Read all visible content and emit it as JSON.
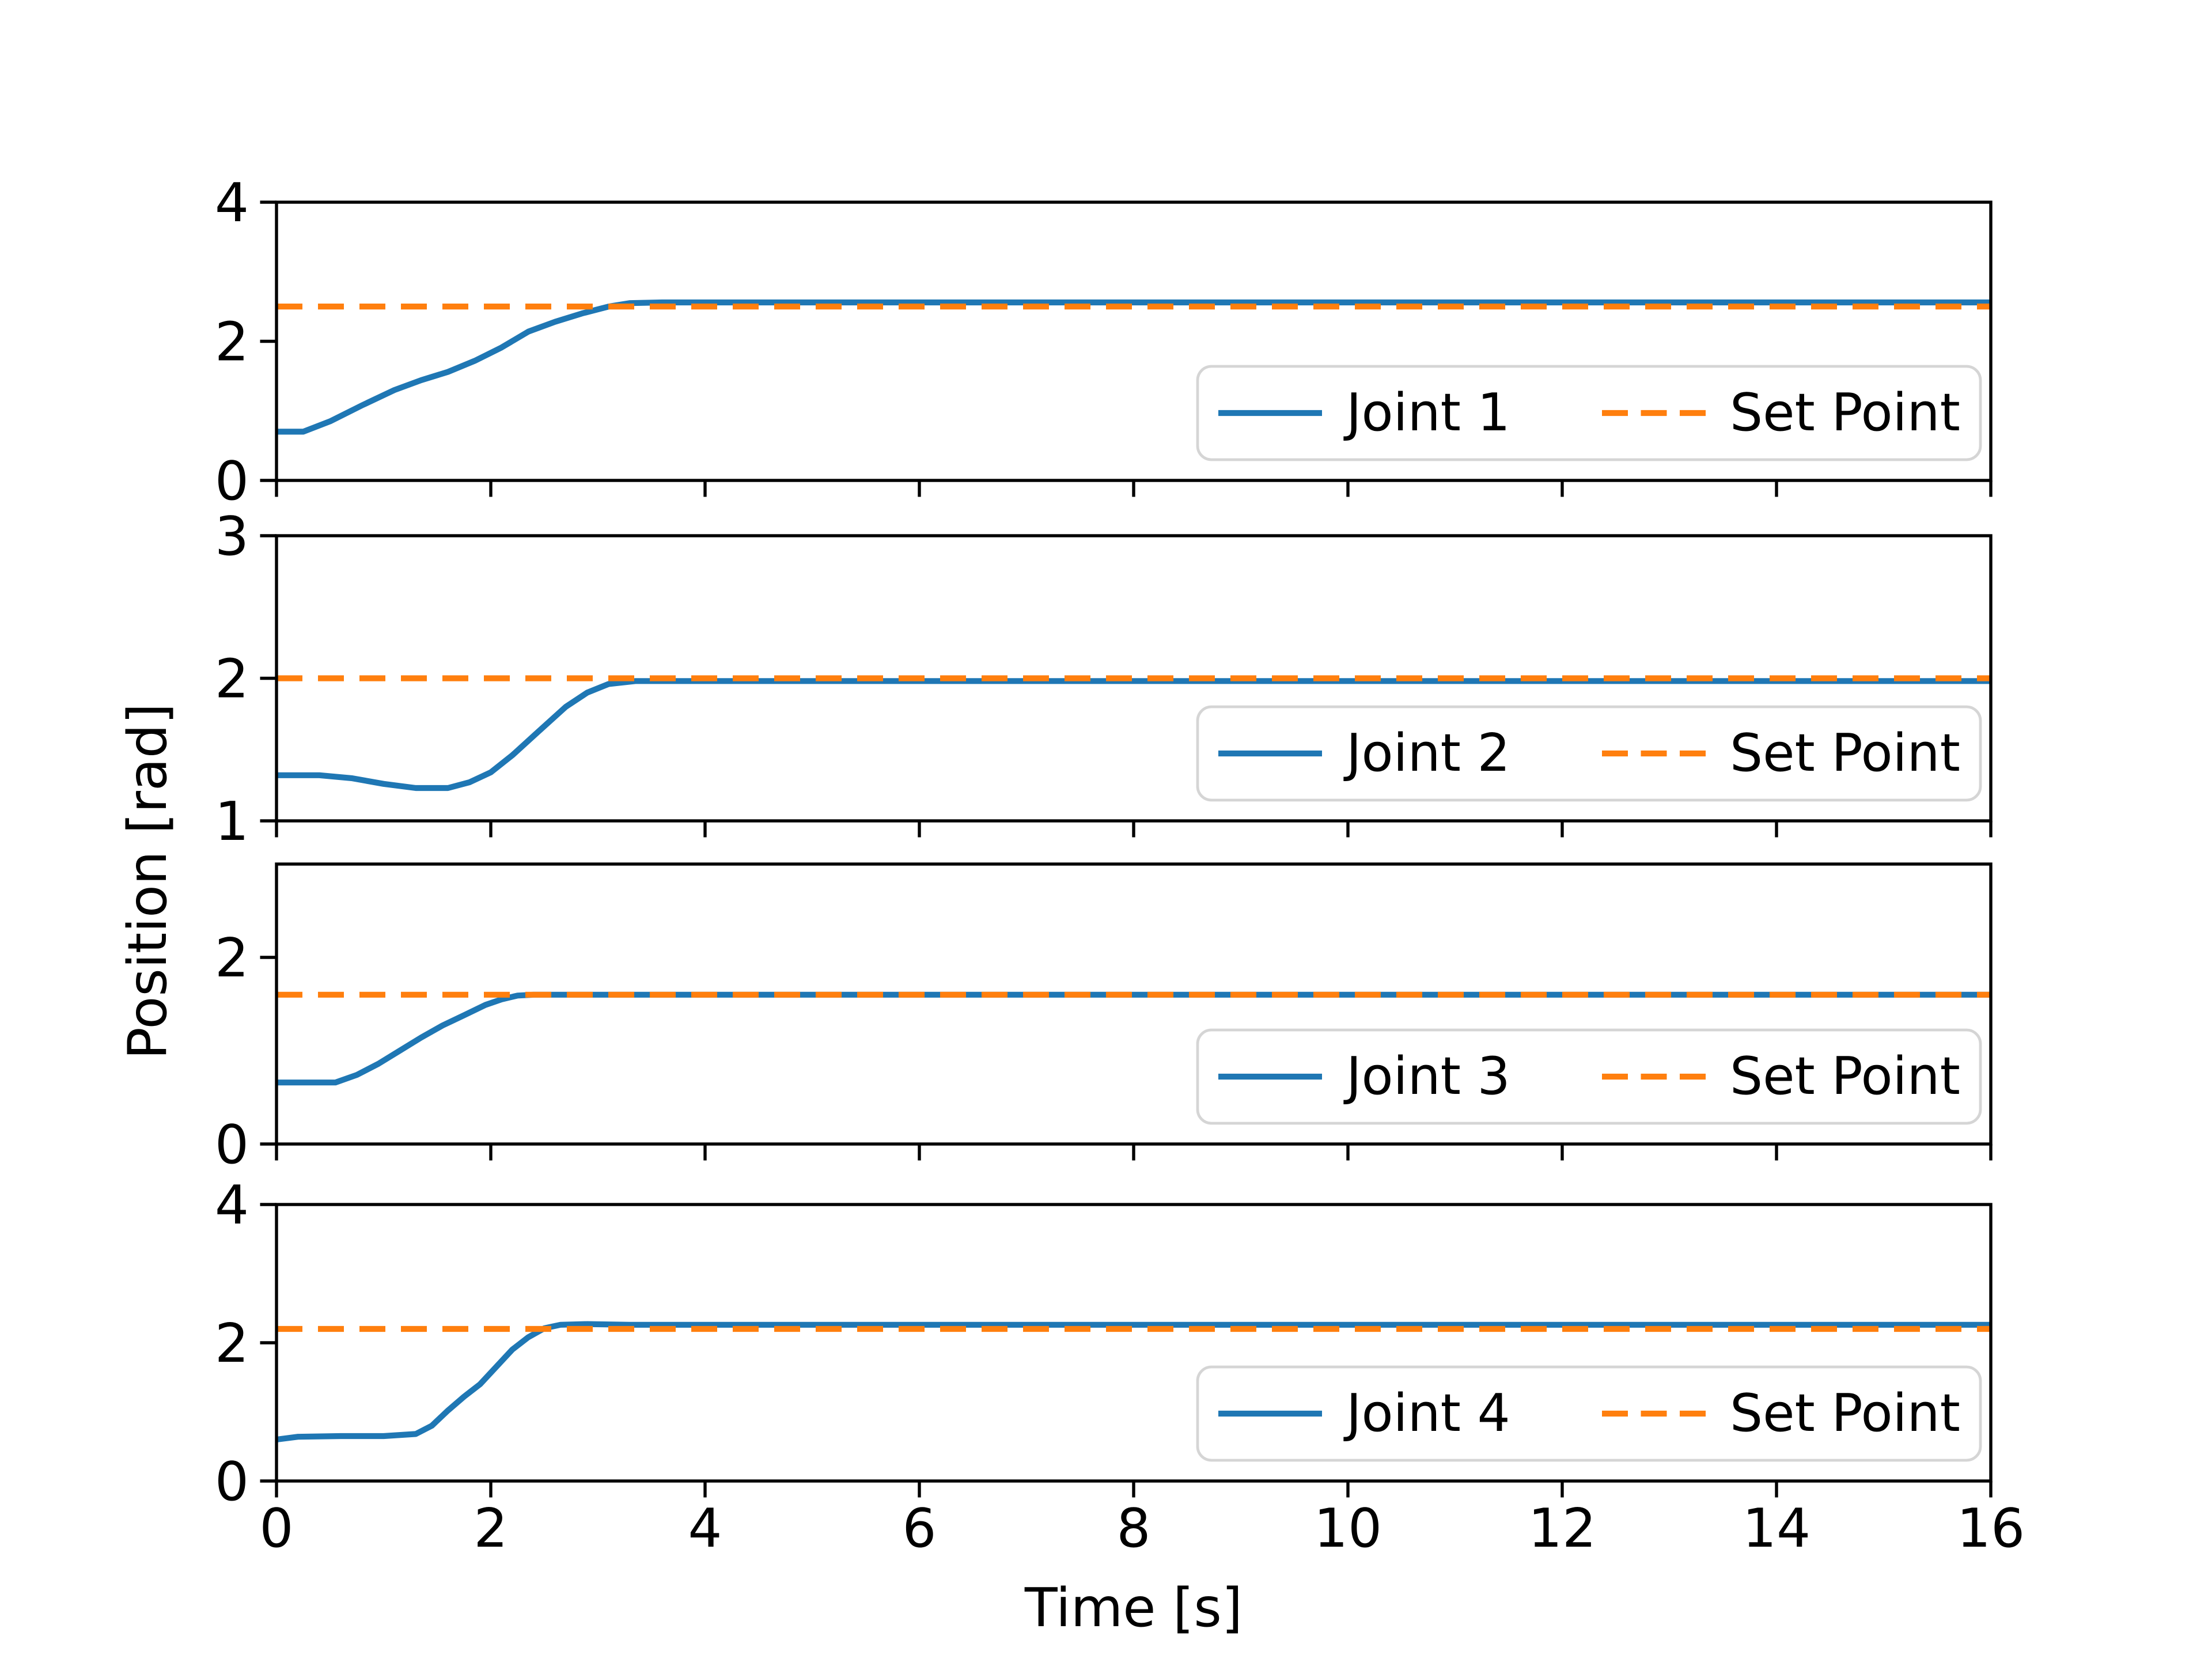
{
  "figure": {
    "background": "#ffffff",
    "frame_color": "#000000"
  },
  "chart_data": {
    "type": "line",
    "title": "",
    "xlabel": "Time [s]",
    "ylabel": "Position [rad]",
    "xlim": [
      0,
      16
    ],
    "x_ticks": [
      0,
      2,
      4,
      6,
      8,
      10,
      12,
      14,
      16
    ],
    "grid": false,
    "legend_position": "lower right",
    "colors": {
      "joint": "#1f77b4",
      "set_point": "#ff7f0e",
      "legend_border": "#d5d5d5"
    },
    "subplots": [
      {
        "legend": [
          "Joint 1",
          "Set Point"
        ],
        "ylim": [
          0,
          4
        ],
        "y_ticks": [
          0,
          2,
          4
        ],
        "set_point": 2.5,
        "series": {
          "name": "Joint 1",
          "x": [
            0,
            0.25,
            0.5,
            0.8,
            1.1,
            1.35,
            1.6,
            1.85,
            2.1,
            2.35,
            2.6,
            2.85,
            3.1,
            3.3,
            3.6,
            16
          ],
          "y": [
            0.7,
            0.7,
            0.85,
            1.08,
            1.3,
            1.44,
            1.56,
            1.72,
            1.91,
            2.14,
            2.28,
            2.4,
            2.5,
            2.55,
            2.56,
            2.56
          ]
        }
      },
      {
        "legend": [
          "Joint 2",
          "Set Point"
        ],
        "ylim": [
          1,
          3
        ],
        "y_ticks": [
          1,
          2,
          3
        ],
        "set_point": 2.0,
        "series": {
          "name": "Joint 2",
          "x": [
            0,
            0.4,
            0.7,
            1.0,
            1.3,
            1.6,
            1.8,
            2.0,
            2.2,
            2.45,
            2.7,
            2.9,
            3.1,
            3.35,
            3.7,
            16
          ],
          "y": [
            1.32,
            1.32,
            1.3,
            1.26,
            1.23,
            1.23,
            1.27,
            1.34,
            1.46,
            1.63,
            1.8,
            1.9,
            1.96,
            1.98,
            1.98,
            1.98
          ]
        }
      },
      {
        "legend": [
          "Joint 3",
          "Set Point"
        ],
        "ylim": [
          0,
          3
        ],
        "y_ticks": [
          0,
          2
        ],
        "set_point": 1.6,
        "series": {
          "name": "Joint 3",
          "x": [
            0,
            0.55,
            0.75,
            0.95,
            1.15,
            1.35,
            1.55,
            1.75,
            1.95,
            2.1,
            2.25,
            2.4,
            16
          ],
          "y": [
            0.66,
            0.66,
            0.74,
            0.86,
            1.0,
            1.14,
            1.27,
            1.38,
            1.49,
            1.55,
            1.59,
            1.6,
            1.6
          ]
        }
      },
      {
        "legend": [
          "Joint 4",
          "Set Point"
        ],
        "ylim": [
          0,
          4
        ],
        "y_ticks": [
          0,
          2,
          4
        ],
        "set_point": 2.2,
        "series": {
          "name": "Joint 4",
          "x": [
            0,
            0.2,
            0.6,
            1.0,
            1.3,
            1.45,
            1.6,
            1.75,
            1.9,
            2.05,
            2.2,
            2.35,
            2.5,
            2.65,
            2.9,
            3.3,
            16
          ],
          "y": [
            0.6,
            0.64,
            0.65,
            0.65,
            0.68,
            0.8,
            1.02,
            1.22,
            1.4,
            1.65,
            1.9,
            2.08,
            2.21,
            2.26,
            2.27,
            2.26,
            2.26
          ]
        }
      }
    ]
  }
}
